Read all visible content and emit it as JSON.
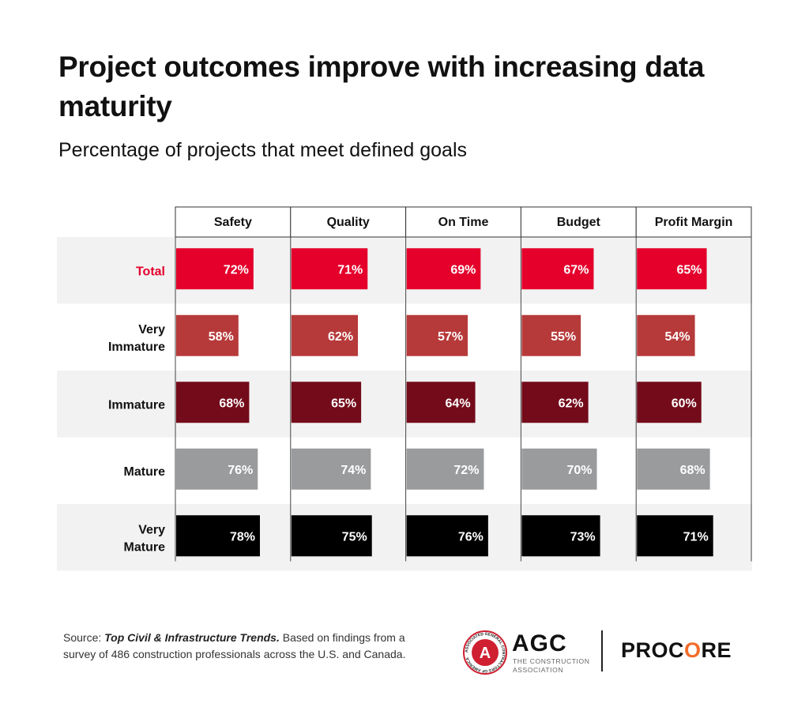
{
  "header": {
    "title": "Project outcomes improve with increasing data maturity",
    "subtitle": "Percentage of projects that meet defined goals"
  },
  "chart_data": {
    "type": "bar",
    "orientation": "horizontal",
    "layout": "small-multiples table",
    "categories": [
      "Total",
      "Very Immature",
      "Immature",
      "Mature",
      "Very Mature"
    ],
    "panels": [
      "Safety",
      "Quality",
      "On Time",
      "Budget",
      "Profit Margin"
    ],
    "series": [
      {
        "name": "Total",
        "color": "#e4002b",
        "label_color": "#e4002b",
        "values": [
          72,
          71,
          69,
          67,
          65
        ]
      },
      {
        "name": "Very Immature",
        "color": "#b73a3a",
        "label_color": "#111111",
        "values": [
          58,
          62,
          57,
          55,
          54
        ]
      },
      {
        "name": "Immature",
        "color": "#730b1a",
        "label_color": "#111111",
        "values": [
          68,
          65,
          64,
          62,
          60
        ]
      },
      {
        "name": "Mature",
        "color": "#9a9b9d",
        "label_color": "#111111",
        "values": [
          76,
          74,
          72,
          70,
          68
        ]
      },
      {
        "name": "Very Mature",
        "color": "#000000",
        "label_color": "#111111",
        "values": [
          78,
          75,
          76,
          73,
          71
        ]
      }
    ],
    "value_suffix": "%",
    "xlim": [
      0,
      100
    ],
    "row_shading": [
      "#f2f2f2",
      "#ffffff",
      "#f2f2f2",
      "#ffffff",
      "#f2f2f2"
    ],
    "grid": false
  },
  "source": {
    "prefix": "Source: ",
    "publication": "Top Civil & Infrastructure Trends.",
    "text": " Based on findings from a survey of 486 construction professionals across the U.S. and Canada."
  },
  "logos": {
    "agc_word": "AGC",
    "agc_sub_line1": "THE CONSTRUCTION",
    "agc_sub_line2": "ASSOCIATION",
    "agc_seal_text": "ASSOCIATED GENERAL CONTRACTORS OF AMERICA",
    "agc_seal_letter": "A",
    "procore_word": "PROCORE",
    "agc_color": "#cf2031",
    "procore_accent": "#f26c2a"
  }
}
